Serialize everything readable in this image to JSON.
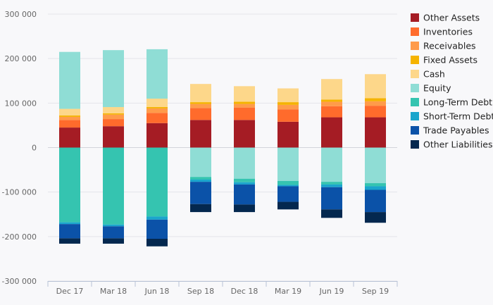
{
  "chart_data": {
    "type": "bar",
    "stacked": true,
    "categories": [
      "Dec 17",
      "Mar 18",
      "Jun 18",
      "Sep 18",
      "Dec 18",
      "Mar 19",
      "Jun 19",
      "Sep 19"
    ],
    "ylim": [
      -300000,
      300000
    ],
    "yticks": [
      300000,
      200000,
      100000,
      0,
      -100000,
      -200000,
      -300000
    ],
    "ytick_labels": [
      "300 000",
      "200 000",
      "100 000",
      "0",
      "-100 000",
      "-200 000",
      "-300 000"
    ],
    "grid": true,
    "legend_position": "right",
    "series": [
      {
        "name": "Other Assets",
        "color": "#a51c24",
        "values": [
          45000,
          48000,
          55000,
          62000,
          62000,
          58000,
          68000,
          68000
        ]
      },
      {
        "name": "Inventories",
        "color": "#ff6b2c",
        "values": [
          17000,
          16000,
          23000,
          27000,
          28000,
          28000,
          25000,
          26000
        ]
      },
      {
        "name": "Receivables",
        "color": "#ff9b4a",
        "values": [
          7000,
          10000,
          10000,
          9000,
          8000,
          10000,
          10000,
          10000
        ]
      },
      {
        "name": "Fixed Assets",
        "color": "#f5b300",
        "values": [
          3000,
          3000,
          3000,
          4000,
          5000,
          6000,
          5000,
          7000
        ]
      },
      {
        "name": "Cash",
        "color": "#fdd78a",
        "values": [
          15000,
          14000,
          19000,
          41000,
          35000,
          31000,
          46000,
          54000
        ]
      },
      {
        "name": "Equity",
        "color": "#8fddd5",
        "values": [
          128000,
          128000,
          111000,
          -66000,
          -70000,
          -75000,
          -77000,
          -80000
        ]
      },
      {
        "name": "Long-Term Debt",
        "color": "#35c4b0",
        "values": [
          -168000,
          -173000,
          -155000,
          -6000,
          -8000,
          -9000,
          -6000,
          -7000
        ]
      },
      {
        "name": "Short-Term Debt",
        "color": "#1aa5cc",
        "values": [
          -4000,
          -4000,
          -7000,
          -5000,
          -5000,
          -3000,
          -6000,
          -8000
        ]
      },
      {
        "name": "Trade Payables",
        "color": "#0b52a8",
        "values": [
          -32000,
          -27000,
          -43000,
          -50000,
          -45000,
          -35000,
          -50000,
          -50000
        ]
      },
      {
        "name": "Other Liabilities",
        "color": "#04284f",
        "values": [
          -12000,
          -12000,
          -17000,
          -18000,
          -17000,
          -17000,
          -19000,
          -24000
        ]
      }
    ]
  }
}
